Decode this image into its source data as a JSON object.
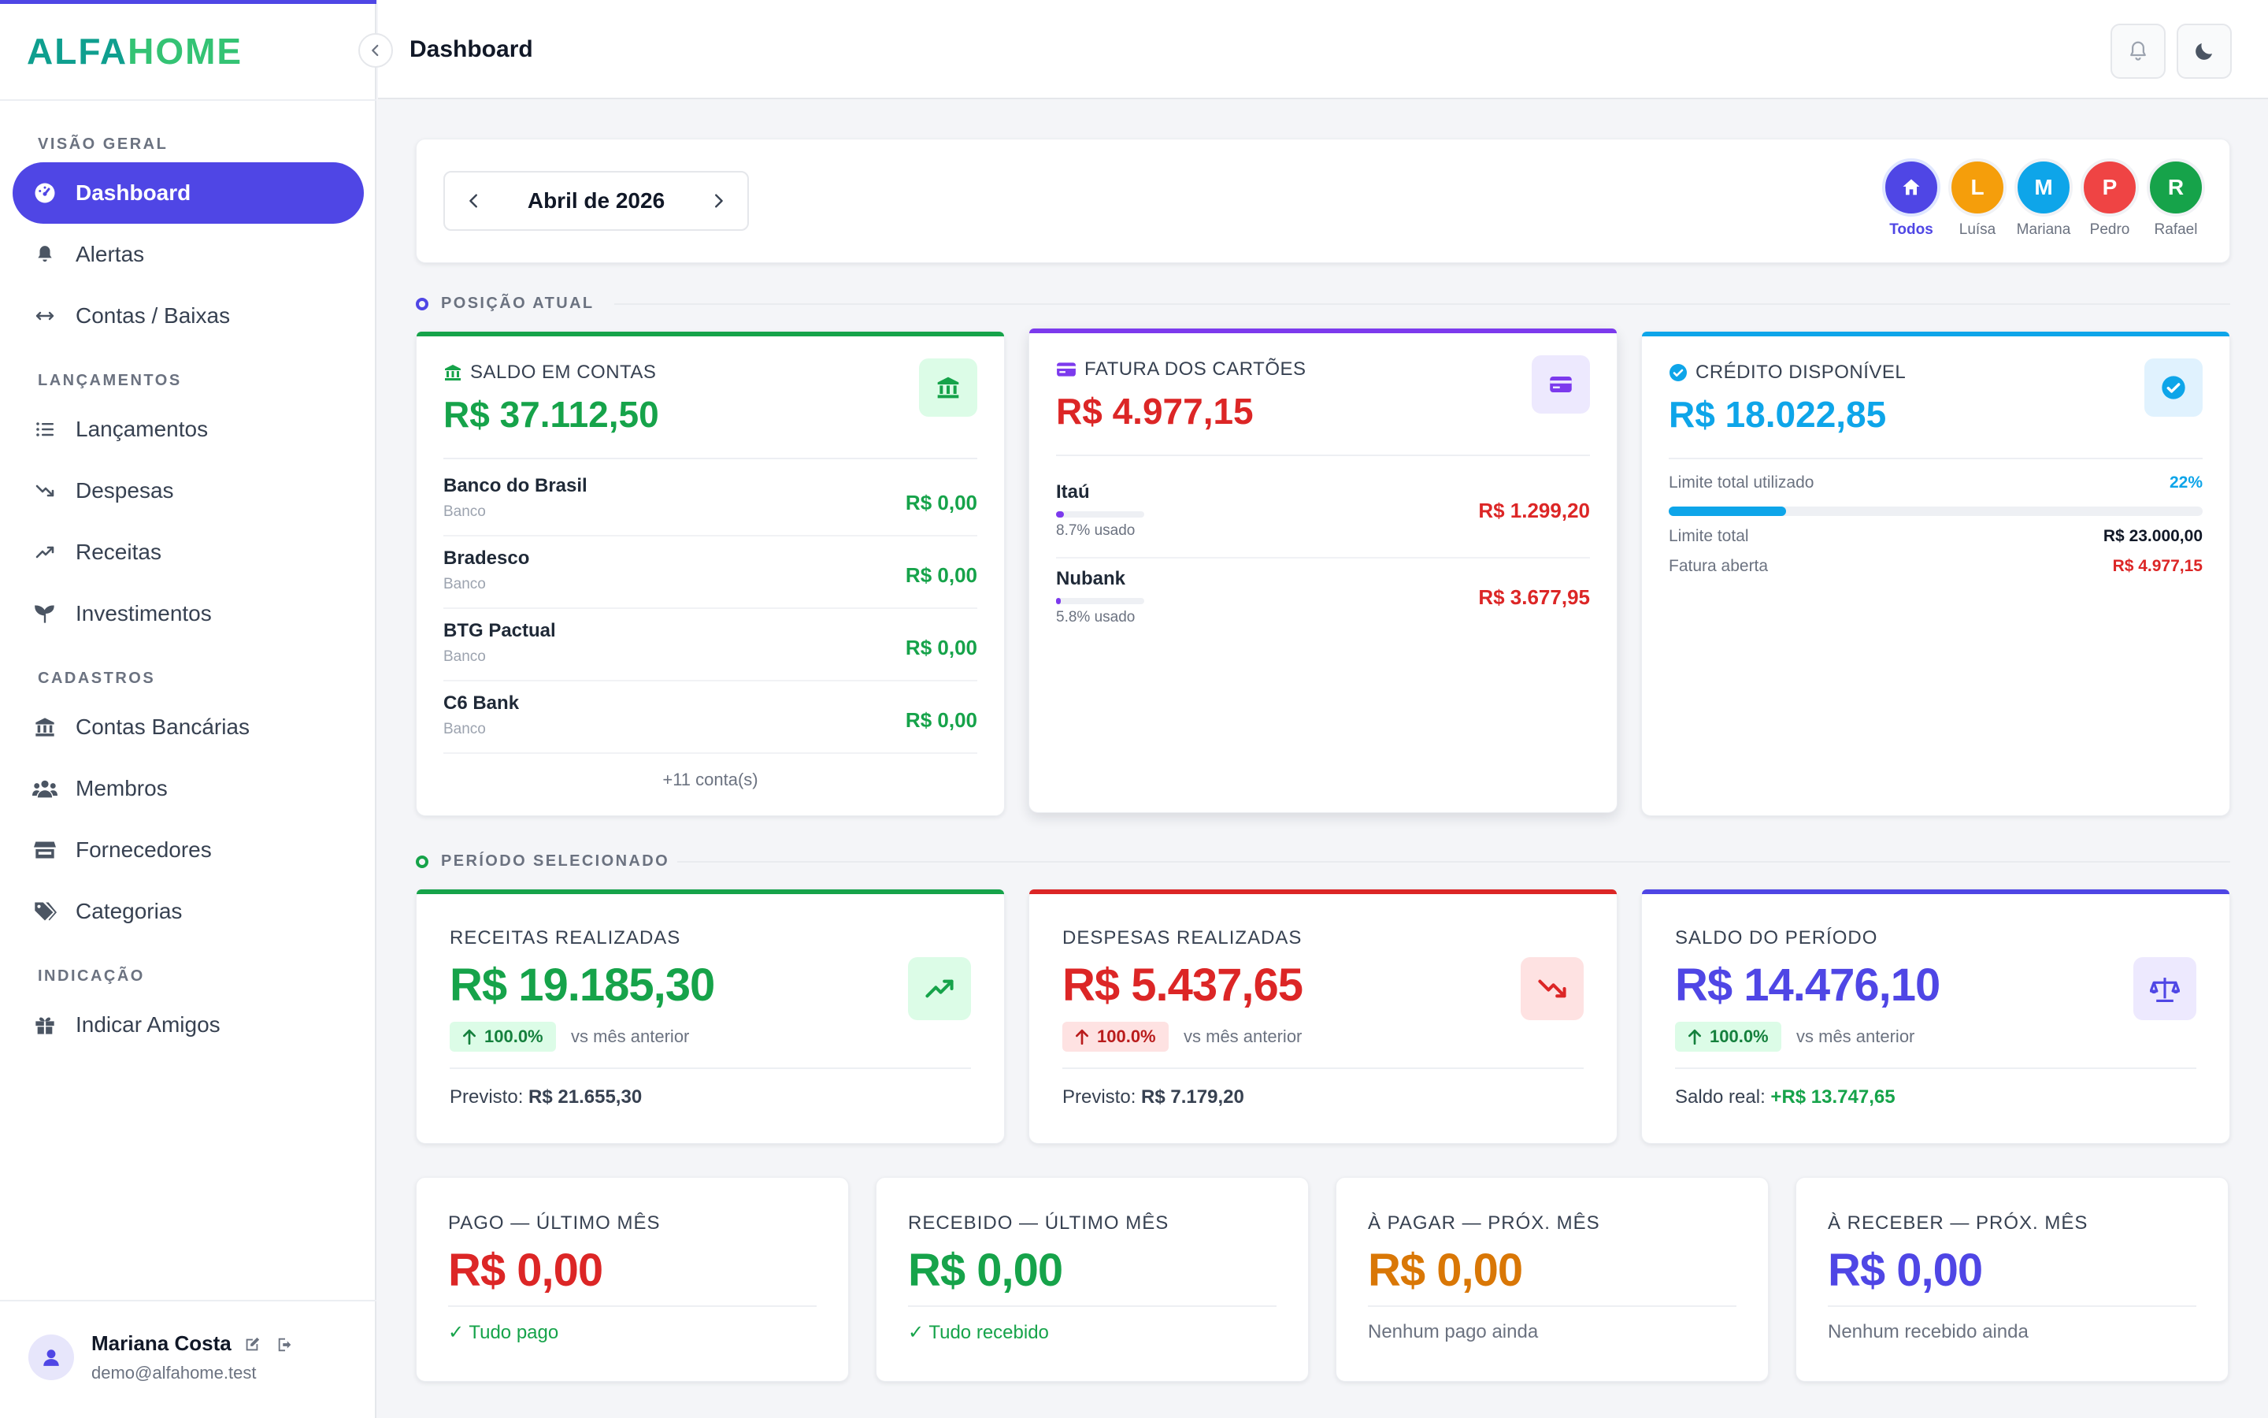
{
  "app": {
    "logo_a": "ALFA",
    "logo_b": "HOME",
    "page_title": "Dashboard"
  },
  "sidebar": {
    "sections": {
      "overview": "VISÃO GERAL",
      "entries": "LANÇAMENTOS",
      "registry": "CADASTROS",
      "referral": "INDICAÇÃO"
    },
    "items": {
      "dashboard": "Dashboard",
      "alerts": "Alertas",
      "accounts": "Contas / Baixas",
      "entries": "Lançamentos",
      "expenses": "Despesas",
      "revenues": "Receitas",
      "investments": "Investimentos",
      "bank_accounts": "Contas Bancárias",
      "members": "Membros",
      "suppliers": "Fornecedores",
      "categories": "Categorias",
      "refer_friends": "Indicar Amigos"
    },
    "user": {
      "name": "Mariana Costa",
      "email": "demo@alfahome.test"
    }
  },
  "period_selector": {
    "month": "Abril de 2026"
  },
  "members": [
    {
      "initial": "",
      "label": "Todos",
      "color": "#4f46e5",
      "icon": "home-icon"
    },
    {
      "initial": "L",
      "label": "Luísa",
      "color": "#f59e0b"
    },
    {
      "initial": "M",
      "label": "Mariana",
      "color": "#0ea5e9"
    },
    {
      "initial": "P",
      "label": "Pedro",
      "color": "#ef4444"
    },
    {
      "initial": "R",
      "label": "Rafael",
      "color": "#16a34a"
    }
  ],
  "position": {
    "section_label": "POSIÇÃO ATUAL",
    "balance": {
      "title": "SALDO EM CONTAS",
      "value": "R$ 37.112,50",
      "accounts": [
        {
          "name": "Banco do Brasil",
          "type": "Banco",
          "value": "R$ 0,00"
        },
        {
          "name": "Bradesco",
          "type": "Banco",
          "value": "R$ 0,00"
        },
        {
          "name": "BTG Pactual",
          "type": "Banco",
          "value": "R$ 0,00"
        },
        {
          "name": "C6 Bank",
          "type": "Banco",
          "value": "R$ 0,00"
        }
      ],
      "more": "+11 conta(s)"
    },
    "cards": {
      "title": "FATURA DOS CARTÕES",
      "value": "R$ 4.977,15",
      "items": [
        {
          "name": "Itaú",
          "used": "8.7% usado",
          "used_pct": 8.7,
          "value": "R$ 1.299,20"
        },
        {
          "name": "Nubank",
          "used": "5.8% usado",
          "used_pct": 5.8,
          "value": "R$ 3.677,95"
        }
      ]
    },
    "credit": {
      "title": "CRÉDITO DISPONÍVEL",
      "value": "R$ 18.022,85",
      "usage_label": "Limite total utilizado",
      "usage_pct_text": "22%",
      "usage_pct": 22,
      "limit_label": "Limite total",
      "limit_value": "R$ 23.000,00",
      "open_label": "Fatura aberta",
      "open_value": "R$ 4.977,15"
    }
  },
  "period": {
    "section_label": "PERÍODO SELECIONADO",
    "revenue": {
      "title": "RECEITAS REALIZADAS",
      "value": "R$ 19.185,30",
      "badge": "100.0%",
      "vs": "vs mês anterior",
      "foot_label": "Previsto:",
      "foot_value": "R$ 21.655,30"
    },
    "expense": {
      "title": "DESPESAS REALIZADAS",
      "value": "R$ 5.437,65",
      "badge": "100.0%",
      "vs": "vs mês anterior",
      "foot_label": "Previsto:",
      "foot_value": "R$ 7.179,20"
    },
    "balance": {
      "title": "SALDO DO PERÍODO",
      "value": "R$ 14.476,10",
      "badge": "100.0%",
      "vs": "vs mês anterior",
      "foot_label": "Saldo real:",
      "foot_value": "+R$ 13.747,65"
    }
  },
  "summary": [
    {
      "title": "PAGO — ÚLTIMO MÊS",
      "value": "R$ 0,00",
      "foot": "✓ Tudo pago",
      "color": "#dc2626",
      "foot_color": "#16a34a"
    },
    {
      "title": "RECEBIDO — ÚLTIMO MÊS",
      "value": "R$ 0,00",
      "foot": "✓ Tudo recebido",
      "color": "#16a34a",
      "foot_color": "#16a34a"
    },
    {
      "title": "À PAGAR — PRÓX. MÊS",
      "value": "R$ 0,00",
      "foot": "Nenhum pago ainda",
      "color": "#d97706",
      "foot_color": "#6b7280"
    },
    {
      "title": "À RECEBER — PRÓX. MÊS",
      "value": "R$ 0,00",
      "foot": "Nenhum recebido ainda",
      "color": "#4f46e5",
      "foot_color": "#6b7280"
    }
  ],
  "colors": {
    "brand": "#4f46e5",
    "green": "#16a34a",
    "red": "#dc2626",
    "blue": "#0ea5e9",
    "purple": "#7c3aed",
    "orange": "#d97706"
  }
}
